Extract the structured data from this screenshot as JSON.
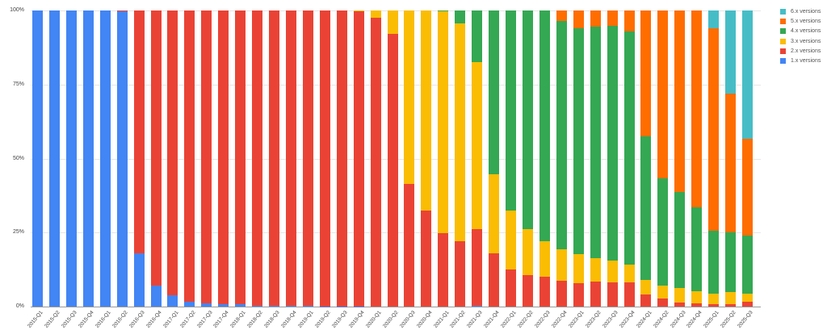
{
  "chart_data": {
    "type": "bar",
    "stacked": true,
    "normalized": true,
    "title": "",
    "xlabel": "",
    "ylabel": "",
    "ylim": [
      0,
      100
    ],
    "y_ticks": [
      "0%",
      "25%",
      "50%",
      "75%",
      "100%"
    ],
    "grid": true,
    "legend_position": "right",
    "categories": [
      "2015-Q1",
      "2015-Q2",
      "2015-Q3",
      "2015-Q4",
      "2016-Q1",
      "2016-Q2",
      "2016-Q3",
      "2016-Q4",
      "2017-Q1",
      "2017-Q2",
      "2017-Q3",
      "2017-Q4",
      "2018-Q1",
      "2018-Q2",
      "2018-Q3",
      "2018-Q4",
      "2019-Q1",
      "2019-Q2",
      "2019-Q3",
      "2019-Q4",
      "2020-Q1",
      "2020-Q2",
      "2020-Q3",
      "2020-Q4",
      "2021-Q1",
      "2021-Q2",
      "2021-Q3",
      "2021-Q4",
      "2022-Q1",
      "2022-Q2",
      "2022-Q3",
      "2022-Q4",
      "2023-Q1",
      "2023-Q2",
      "2023-Q3",
      "2023-Q4",
      "2024-Q1",
      "2024-Q2",
      "2024-Q3",
      "2024-Q4",
      "2025-Q1",
      "2025-Q2",
      "2025-Q3"
    ],
    "series": [
      {
        "name": "1.x versions",
        "color": "#4285f4",
        "values": [
          100,
          100,
          100,
          100,
          100,
          99.8,
          17.9,
          7.2,
          3.8,
          1.6,
          1.0,
          0.7,
          0.7,
          0.4,
          0.3,
          0.2,
          0.2,
          0.1,
          0.1,
          0.1,
          0,
          0,
          0,
          0,
          0,
          0,
          0.2,
          0,
          0,
          0,
          0,
          0,
          0,
          0,
          0,
          0,
          0,
          0,
          0,
          0,
          0,
          0,
          0
        ]
      },
      {
        "name": "2.x versions",
        "color": "#ea4335",
        "values": [
          0,
          0,
          0,
          0,
          0,
          0.2,
          82.1,
          92.8,
          96.2,
          98.4,
          99.0,
          99.3,
          99.3,
          99.6,
          99.7,
          99.8,
          99.8,
          99.9,
          99.9,
          99.6,
          97.6,
          92.0,
          41.5,
          32.5,
          24.9,
          22.2,
          25.9,
          17.9,
          12.5,
          10.5,
          10.2,
          8.8,
          7.9,
          8.4,
          8.2,
          8.2,
          4.0,
          2.7,
          1.3,
          1.0,
          0.8,
          0.9,
          1.6
        ]
      },
      {
        "name": "3.x versions",
        "color": "#fbbc04",
        "values": [
          0,
          0,
          0,
          0,
          0,
          0,
          0,
          0,
          0,
          0,
          0,
          0,
          0,
          0,
          0,
          0,
          0,
          0,
          0,
          0.3,
          2.4,
          8.0,
          58.5,
          67.5,
          74.8,
          73.5,
          56.4,
          26.7,
          20.0,
          15.6,
          11.8,
          10.5,
          9.8,
          7.9,
          7.3,
          5.9,
          5.0,
          4.3,
          4.9,
          4.1,
          3.7,
          4.0,
          2.7
        ]
      },
      {
        "name": "4.x versions",
        "color": "#34a853",
        "values": [
          0,
          0,
          0,
          0,
          0,
          0,
          0,
          0,
          0,
          0,
          0,
          0,
          0,
          0,
          0,
          0,
          0,
          0,
          0,
          0,
          0,
          0,
          0,
          0,
          0.3,
          4.3,
          17.5,
          55.4,
          67.5,
          73.9,
          78.0,
          77.1,
          76.4,
          78.3,
          79.3,
          78.9,
          48.5,
          36.3,
          32.5,
          28.4,
          21.2,
          20.2,
          19.8
        ]
      },
      {
        "name": "5.x versions",
        "color": "#ff6d01",
        "values": [
          0,
          0,
          0,
          0,
          0,
          0,
          0,
          0,
          0,
          0,
          0,
          0,
          0,
          0,
          0,
          0,
          0,
          0,
          0,
          0,
          0,
          0,
          0,
          0,
          0,
          0,
          0,
          0,
          0,
          0,
          0,
          3.6,
          5.9,
          5.4,
          5.2,
          7.0,
          42.5,
          56.7,
          61.3,
          66.5,
          68.2,
          46.9,
          32.7
        ]
      },
      {
        "name": "6.x versions",
        "color": "#46bdc6",
        "values": [
          0,
          0,
          0,
          0,
          0,
          0,
          0,
          0,
          0,
          0,
          0,
          0,
          0,
          0,
          0,
          0,
          0,
          0,
          0,
          0,
          0,
          0,
          0,
          0,
          0,
          0,
          0,
          0,
          0,
          0,
          0,
          0,
          0,
          0,
          0,
          0,
          0,
          0,
          0,
          0,
          6.1,
          28.0,
          43.2
        ]
      }
    ]
  },
  "legend": {
    "items": [
      {
        "label": "6.x versions",
        "color": "#46bdc6"
      },
      {
        "label": "5.x versions",
        "color": "#ff6d01"
      },
      {
        "label": "4.x versions",
        "color": "#34a853"
      },
      {
        "label": "3.x versions",
        "color": "#fbbc04"
      },
      {
        "label": "2.x versions",
        "color": "#ea4335"
      },
      {
        "label": "1.x versions",
        "color": "#4285f4"
      }
    ]
  }
}
